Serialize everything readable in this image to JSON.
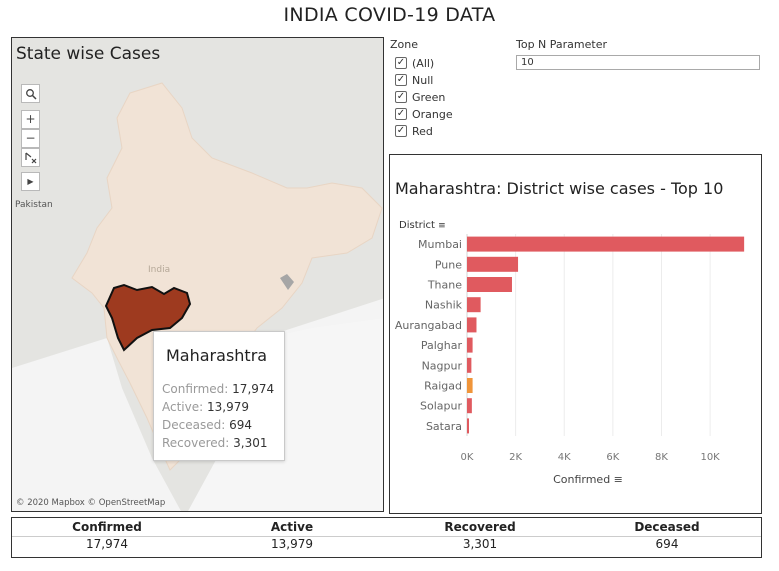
{
  "dashboard": {
    "title": "INDIA COVID-19 DATA"
  },
  "map": {
    "title": "State wise Cases",
    "tools": {
      "search": "search-icon",
      "zoom_in": "+",
      "zoom_out": "−",
      "select": "select-tool-icon",
      "expand": "▶"
    },
    "labels": {
      "pakistan": "Pakistan",
      "india": "India"
    },
    "attribution": "© 2020 Mapbox © OpenStreetMap",
    "highlight_color": "#9e3a1f",
    "tooltip": {
      "state": "Maharashtra",
      "confirmed_label": "Confirmed:",
      "confirmed": "17,974",
      "active_label": "Active:",
      "active": "13,979",
      "deceased_label": "Deceased:",
      "deceased": "694",
      "recovered_label": "Recovered:",
      "recovered": "3,301"
    }
  },
  "filters": {
    "zone_label": "Zone",
    "zones": [
      {
        "label": "(All)",
        "checked": true
      },
      {
        "label": "Null",
        "checked": true
      },
      {
        "label": "Green",
        "checked": true
      },
      {
        "label": "Orange",
        "checked": true
      },
      {
        "label": "Red",
        "checked": true
      }
    ],
    "topn_label": "Top N Parameter",
    "topn_value": "10"
  },
  "chart": {
    "title": "Maharashtra: District wise cases - Top 10",
    "district_header": "District",
    "xlabel": "Confirmed",
    "colors": {
      "red": "#e05a5f",
      "orange": "#f0953a"
    }
  },
  "chart_data": {
    "type": "bar",
    "orientation": "horizontal",
    "title": "Maharashtra: District wise cases - Top 10",
    "xlabel": "Confirmed",
    "ylabel": "District",
    "categories": [
      "Mumbai",
      "Pune",
      "Thane",
      "Nashik",
      "Aurangabad",
      "Palghar",
      "Nagpur",
      "Raigad",
      "Solapur",
      "Satara"
    ],
    "values": [
      11400,
      2100,
      1850,
      560,
      390,
      230,
      180,
      230,
      200,
      80
    ],
    "zones": [
      "red",
      "red",
      "red",
      "red",
      "red",
      "red",
      "red",
      "orange",
      "red",
      "red"
    ],
    "xticks": [
      "0K",
      "2K",
      "4K",
      "6K",
      "8K",
      "10K"
    ],
    "xlim": [
      0,
      11600
    ],
    "grid": true
  },
  "summary": {
    "columns": [
      {
        "label": "Confirmed",
        "value": "17,974"
      },
      {
        "label": "Active",
        "value": "13,979"
      },
      {
        "label": "Recovered",
        "value": "3,301"
      },
      {
        "label": "Deceased",
        "value": "694"
      }
    ]
  }
}
